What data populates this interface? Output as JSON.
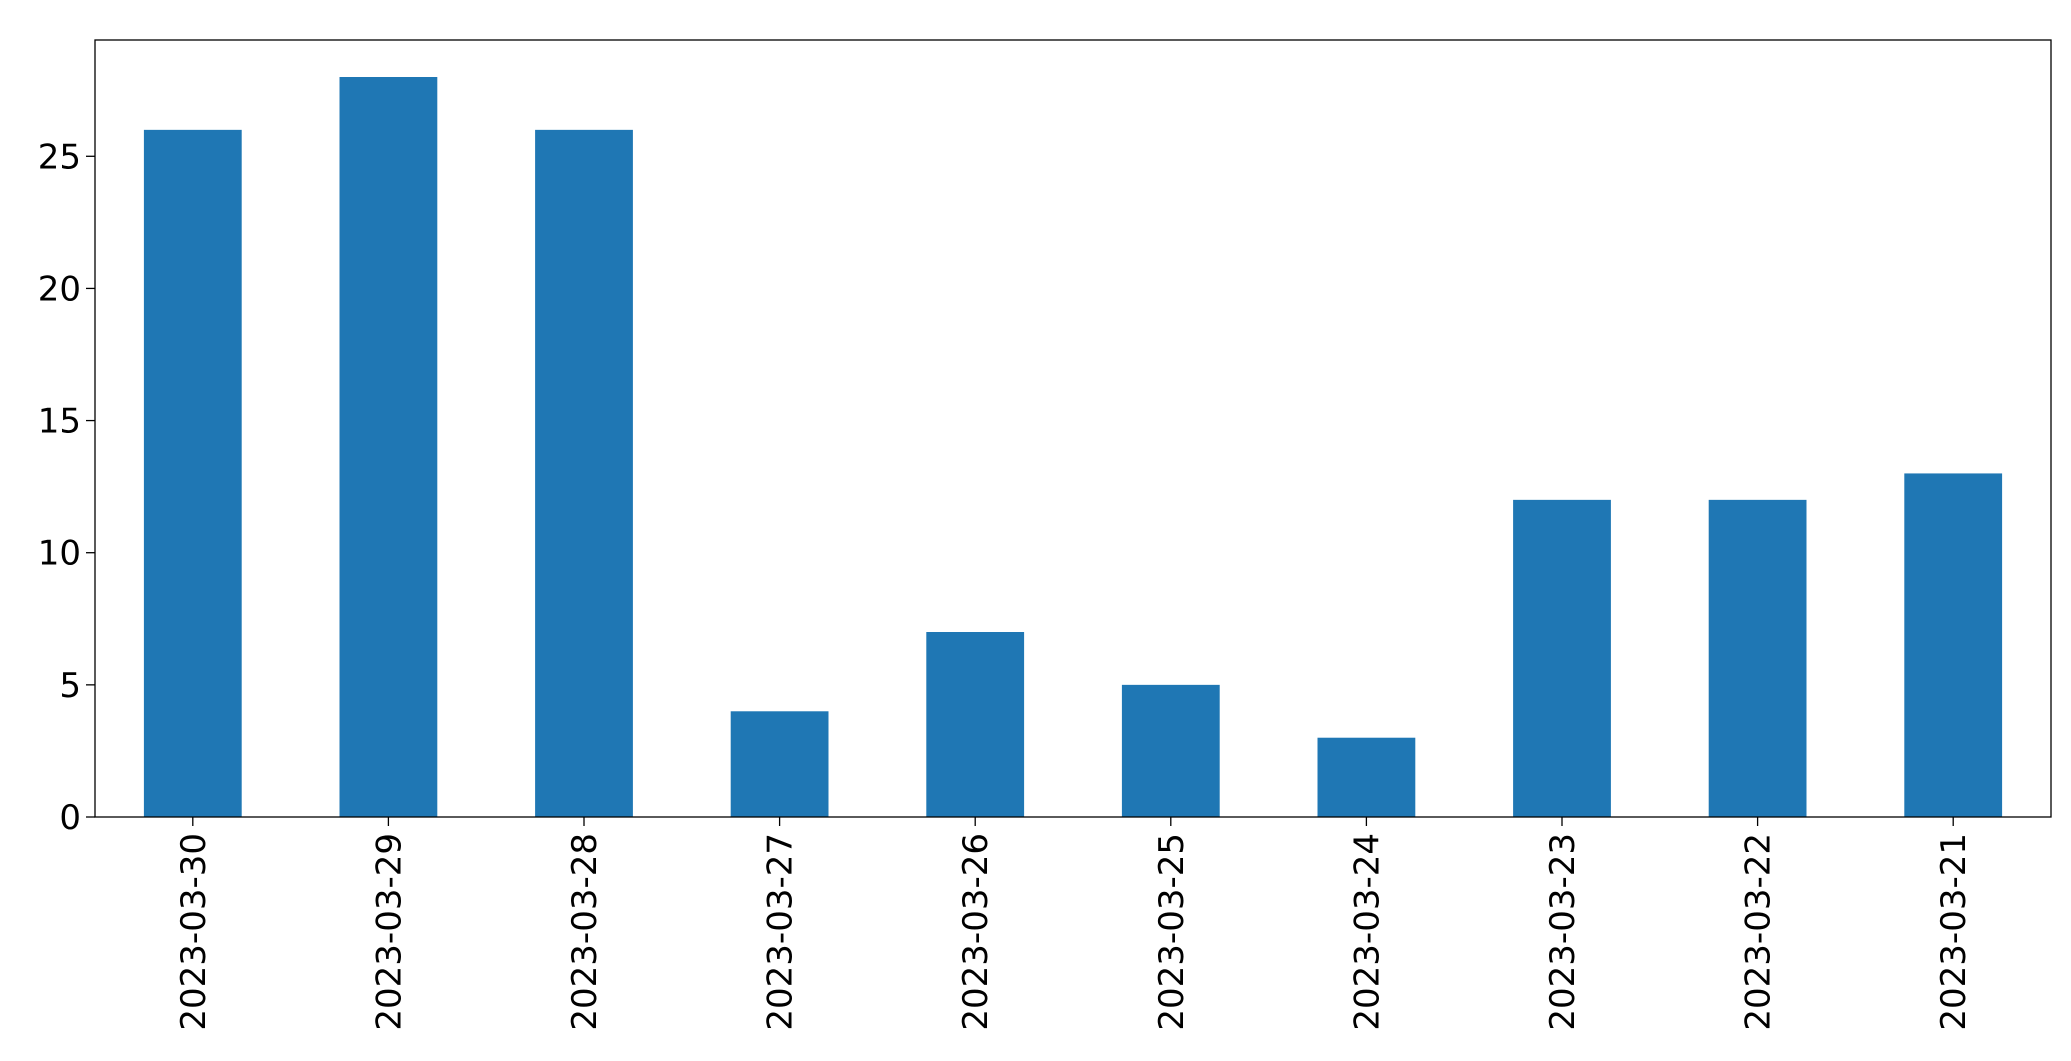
{
  "chart_data": {
    "type": "bar",
    "categories": [
      "2023-03-30",
      "2023-03-29",
      "2023-03-28",
      "2023-03-27",
      "2023-03-26",
      "2023-03-25",
      "2023-03-24",
      "2023-03-23",
      "2023-03-22",
      "2023-03-21"
    ],
    "values": [
      26,
      28,
      26,
      4,
      7,
      5,
      3,
      12,
      12,
      13
    ],
    "color": "#1f77b4",
    "ylim": [
      0,
      29.4
    ],
    "yticks": [
      0,
      5,
      10,
      15,
      20,
      25
    ],
    "grid": false
  }
}
